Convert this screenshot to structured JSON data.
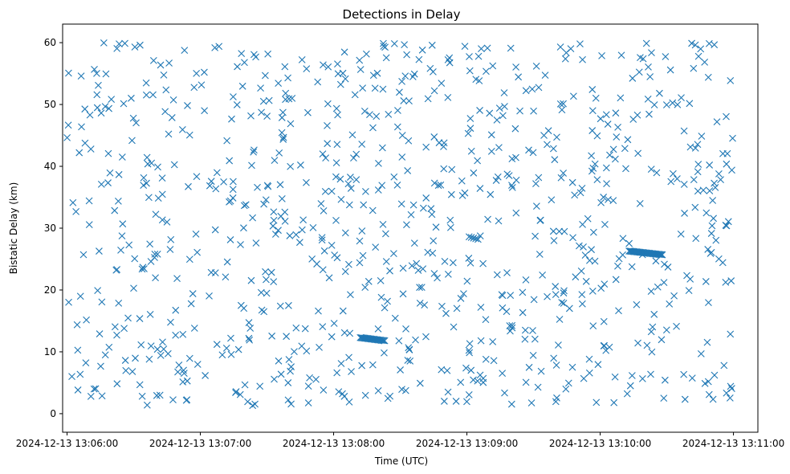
{
  "chart_data": {
    "type": "scatter",
    "title": "Detections in Delay",
    "xlabel": "Time (UTC)",
    "ylabel": "Bistatic Delay (km)",
    "marker": "x",
    "color": "#1f77b4",
    "grid": false,
    "x_unit": "seconds after 2024-12-13 13:06:00",
    "x_ticks": [
      {
        "value": 0,
        "label": "2024-12-13 13:06:00"
      },
      {
        "value": 60,
        "label": "2024-12-13 13:07:00"
      },
      {
        "value": 120,
        "label": "2024-12-13 13:08:00"
      },
      {
        "value": 180,
        "label": "2024-12-13 13:09:00"
      },
      {
        "value": 240,
        "label": "2024-12-13 13:10:00"
      },
      {
        "value": 300,
        "label": "2024-12-13 13:11:00"
      }
    ],
    "xlim": [
      -2,
      311
    ],
    "y_ticks": [
      0,
      10,
      20,
      30,
      40,
      50,
      60
    ],
    "ylim": [
      -3,
      63
    ],
    "tracks": [
      {
        "x_start": 132,
        "x_end": 143,
        "y_start": 12.3,
        "y_end": 11.8,
        "n": 24
      },
      {
        "x_start": 253,
        "x_end": 268,
        "y_start": 26.3,
        "y_end": 25.7,
        "n": 32
      },
      {
        "x_start": 181,
        "x_end": 185,
        "y_start": 28.6,
        "y_end": 28.2,
        "n": 5
      }
    ],
    "clutter": {
      "count": 880,
      "x_range": [
        0,
        300
      ],
      "y_range": [
        1,
        60
      ],
      "seed": 1213
    }
  }
}
